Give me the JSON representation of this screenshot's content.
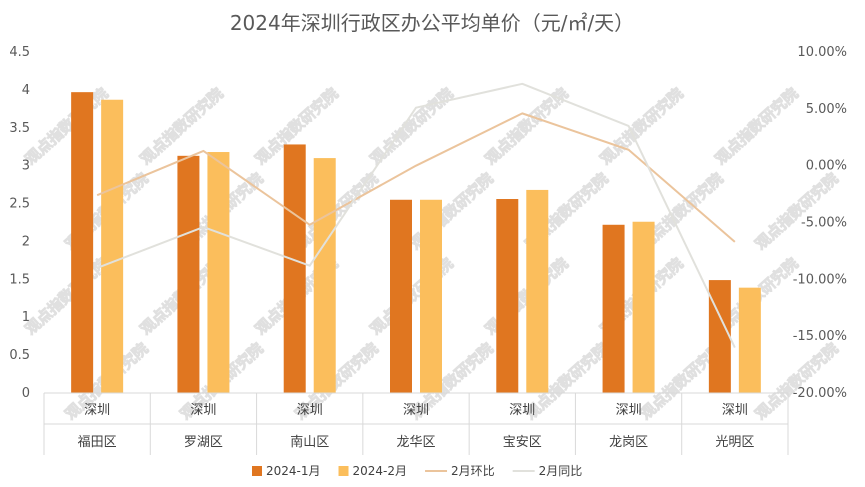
{
  "chart_data": {
    "type": "bar",
    "title": "2024年深圳行政区办公平均单价（元/㎡/天）",
    "city_label": "深圳",
    "categories": [
      "福田区",
      "罗湖区",
      "南山区",
      "龙华区",
      "宝安区",
      "龙岗区",
      "光明区"
    ],
    "y_left": {
      "min": 0,
      "max": 4.5,
      "ticks": [
        "0",
        "0.5",
        "1",
        "1.5",
        "2",
        "2.5",
        "3",
        "3.5",
        "4",
        "4.5"
      ]
    },
    "y_right": {
      "min": -20,
      "max": 10,
      "ticks": [
        "-20.00%",
        "-15.00%",
        "-10.00%",
        "-5.00%",
        "0.00%",
        "5.00%",
        "10.00%"
      ]
    },
    "series": [
      {
        "name": "2024-1月",
        "kind": "bar",
        "axis": "left",
        "color": "#E07620",
        "values": [
          3.97,
          3.13,
          3.28,
          2.55,
          2.56,
          2.22,
          1.49
        ]
      },
      {
        "name": "2024-2月",
        "kind": "bar",
        "axis": "left",
        "color": "#FBBE5C",
        "values": [
          3.87,
          3.18,
          3.1,
          2.55,
          2.68,
          2.26,
          1.39
        ]
      },
      {
        "name": "2月环比",
        "kind": "line",
        "axis": "right",
        "color": "#EBC49C",
        "values": [
          -2.6,
          1.3,
          -5.2,
          0.0,
          4.6,
          1.4,
          -6.7
        ]
      },
      {
        "name": "2月同比",
        "kind": "line",
        "axis": "right",
        "color": "#E1E1DC",
        "values": [
          -9.0,
          -5.4,
          -8.8,
          5.1,
          7.2,
          3.5,
          -16.0
        ]
      }
    ],
    "legend_position": "bottom",
    "grid": false
  },
  "watermark": "观点指数研究院"
}
